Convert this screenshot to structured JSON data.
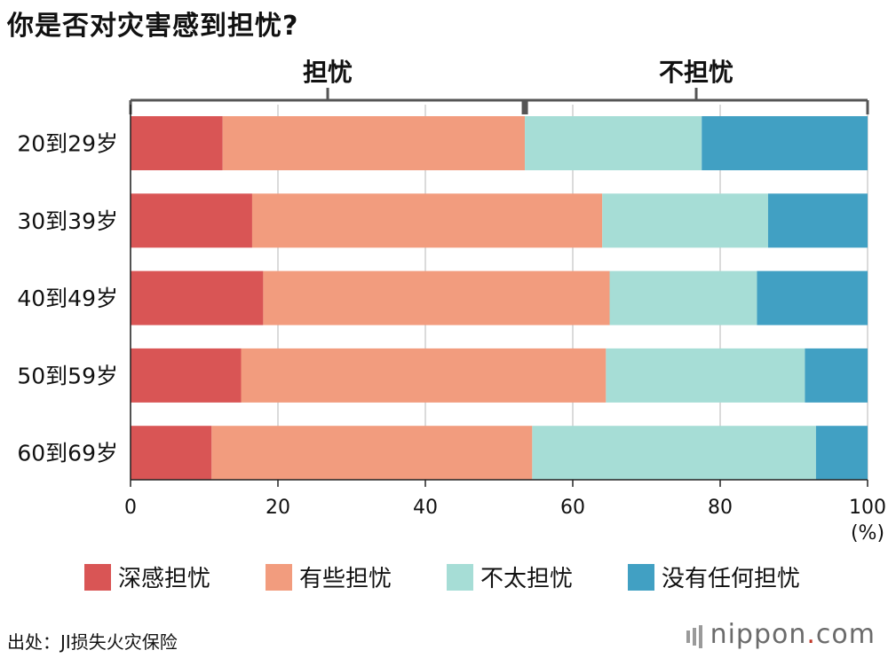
{
  "chart_data": {
    "type": "bar",
    "orientation": "horizontal",
    "stacked": true,
    "title": "你是否对灾害感到担忧?",
    "categories": [
      "20到29岁",
      "30到39岁",
      "40到49岁",
      "50到59岁",
      "60到69岁"
    ],
    "series": [
      {
        "name": "深感担忧",
        "color": "#d95555",
        "values": [
          12.5,
          16.5,
          18.0,
          15.0,
          11.0
        ]
      },
      {
        "name": "有些担忧",
        "color": "#f29c7e",
        "values": [
          41.0,
          47.5,
          47.0,
          49.5,
          43.5
        ]
      },
      {
        "name": "不太担忧",
        "color": "#a6ddd6",
        "values": [
          24.0,
          22.5,
          20.0,
          27.0,
          38.5
        ]
      },
      {
        "name": "没有任何担忧",
        "color": "#41a0c3",
        "values": [
          22.5,
          13.5,
          15.0,
          8.5,
          7.0
        ]
      }
    ],
    "xlim": [
      0,
      100
    ],
    "xticks": [
      "0",
      "20",
      "40",
      "60",
      "80",
      "100"
    ],
    "xunit": "(%)",
    "grid": true,
    "legend_position": "bottom",
    "bracket": {
      "left_label": "担忧",
      "right_label": "不担忧",
      "split": 53.5
    }
  },
  "source": "出处：JI损失火灾保险",
  "brand": {
    "name": "nippon",
    "dot": ".",
    "tld": "com"
  }
}
